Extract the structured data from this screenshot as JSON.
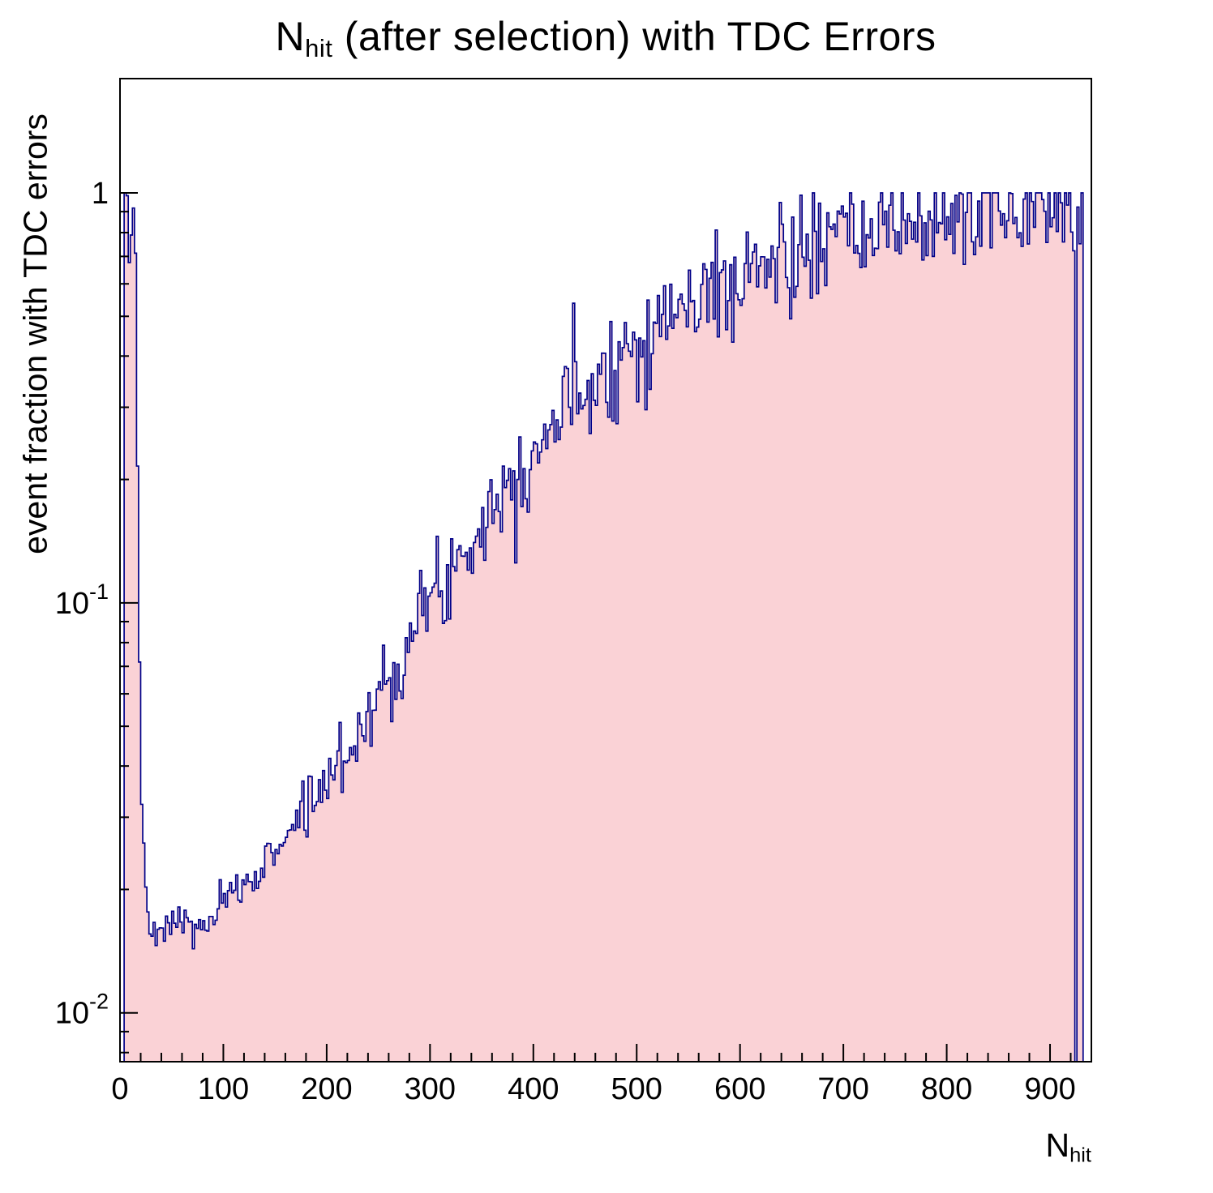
{
  "chart_data": {
    "type": "histogram",
    "title": {
      "prefix": "N",
      "sub": "hit",
      "rest": " (after selection) with TDC Errors"
    },
    "ylabel": "event fraction with TDC errors",
    "xlabel": {
      "prefix": "N",
      "sub": "hit"
    },
    "x_range": [
      0,
      940
    ],
    "y_range": [
      0.0076,
      1.9
    ],
    "y_scale": "log",
    "grid": false,
    "legend": "none",
    "x_major_tick_step": 100,
    "x_minor_tick_step": 20,
    "x_major_tick_max_labeled": 900,
    "y_major_ticks": [
      {
        "value": 1,
        "base": "1",
        "exp": ""
      },
      {
        "value": 0.1,
        "base": "10",
        "exp": "-1"
      },
      {
        "value": 0.01,
        "base": "10",
        "exp": "-2"
      }
    ],
    "bin_width": 2,
    "data_start": 4,
    "data_end": 932,
    "zero_bins": [
      924
    ],
    "clamp_max": 1.0,
    "noise": {
      "seed": 7,
      "sigma_low": 0.022,
      "sigma_mid": 0.055,
      "sigma_high": 0.07
    },
    "colors": {
      "fill": "#fad2d6",
      "line": "#000088",
      "axis": "#000000",
      "text": "#000000"
    },
    "trend_points": [
      [
        4,
        0.98
      ],
      [
        8,
        1.0
      ],
      [
        10,
        0.62
      ],
      [
        12,
        0.98
      ],
      [
        14,
        0.9
      ],
      [
        16,
        0.42
      ],
      [
        18,
        0.14
      ],
      [
        20,
        0.05
      ],
      [
        23,
        0.024
      ],
      [
        26,
        0.017
      ],
      [
        32,
        0.015
      ],
      [
        40,
        0.0155
      ],
      [
        48,
        0.0165
      ],
      [
        56,
        0.017
      ],
      [
        64,
        0.0165
      ],
      [
        72,
        0.0158
      ],
      [
        80,
        0.0162
      ],
      [
        88,
        0.0166
      ],
      [
        96,
        0.018
      ],
      [
        104,
        0.019
      ],
      [
        112,
        0.0195
      ],
      [
        120,
        0.0205
      ],
      [
        130,
        0.0215
      ],
      [
        140,
        0.023
      ],
      [
        150,
        0.025
      ],
      [
        160,
        0.027
      ],
      [
        170,
        0.029
      ],
      [
        180,
        0.032
      ],
      [
        190,
        0.034
      ],
      [
        200,
        0.037
      ],
      [
        210,
        0.04
      ],
      [
        220,
        0.044
      ],
      [
        230,
        0.048
      ],
      [
        240,
        0.053
      ],
      [
        250,
        0.059
      ],
      [
        260,
        0.066
      ],
      [
        270,
        0.074
      ],
      [
        280,
        0.082
      ],
      [
        290,
        0.091
      ],
      [
        300,
        0.1
      ],
      [
        310,
        0.11
      ],
      [
        320,
        0.12
      ],
      [
        330,
        0.132
      ],
      [
        340,
        0.145
      ],
      [
        350,
        0.158
      ],
      [
        360,
        0.172
      ],
      [
        370,
        0.187
      ],
      [
        380,
        0.203
      ],
      [
        390,
        0.22
      ],
      [
        400,
        0.238
      ],
      [
        410,
        0.257
      ],
      [
        420,
        0.277
      ],
      [
        430,
        0.298
      ],
      [
        440,
        0.32
      ],
      [
        450,
        0.342
      ],
      [
        460,
        0.36
      ],
      [
        470,
        0.378
      ],
      [
        480,
        0.396
      ],
      [
        490,
        0.414
      ],
      [
        500,
        0.432
      ],
      [
        510,
        0.452
      ],
      [
        520,
        0.472
      ],
      [
        530,
        0.492
      ],
      [
        540,
        0.512
      ],
      [
        550,
        0.53
      ],
      [
        560,
        0.548
      ],
      [
        570,
        0.566
      ],
      [
        580,
        0.584
      ],
      [
        590,
        0.602
      ],
      [
        600,
        0.62
      ],
      [
        615,
        0.645
      ],
      [
        630,
        0.67
      ],
      [
        645,
        0.692
      ],
      [
        660,
        0.713
      ],
      [
        675,
        0.733
      ],
      [
        690,
        0.752
      ],
      [
        705,
        0.77
      ],
      [
        720,
        0.788
      ],
      [
        735,
        0.806
      ],
      [
        750,
        0.823
      ],
      [
        765,
        0.84
      ],
      [
        780,
        0.856
      ],
      [
        795,
        0.872
      ],
      [
        810,
        0.887
      ],
      [
        825,
        0.9
      ],
      [
        840,
        0.912
      ],
      [
        855,
        0.922
      ],
      [
        870,
        0.932
      ],
      [
        885,
        0.941
      ],
      [
        900,
        0.95
      ],
      [
        915,
        0.958
      ],
      [
        930,
        0.965
      ]
    ]
  }
}
